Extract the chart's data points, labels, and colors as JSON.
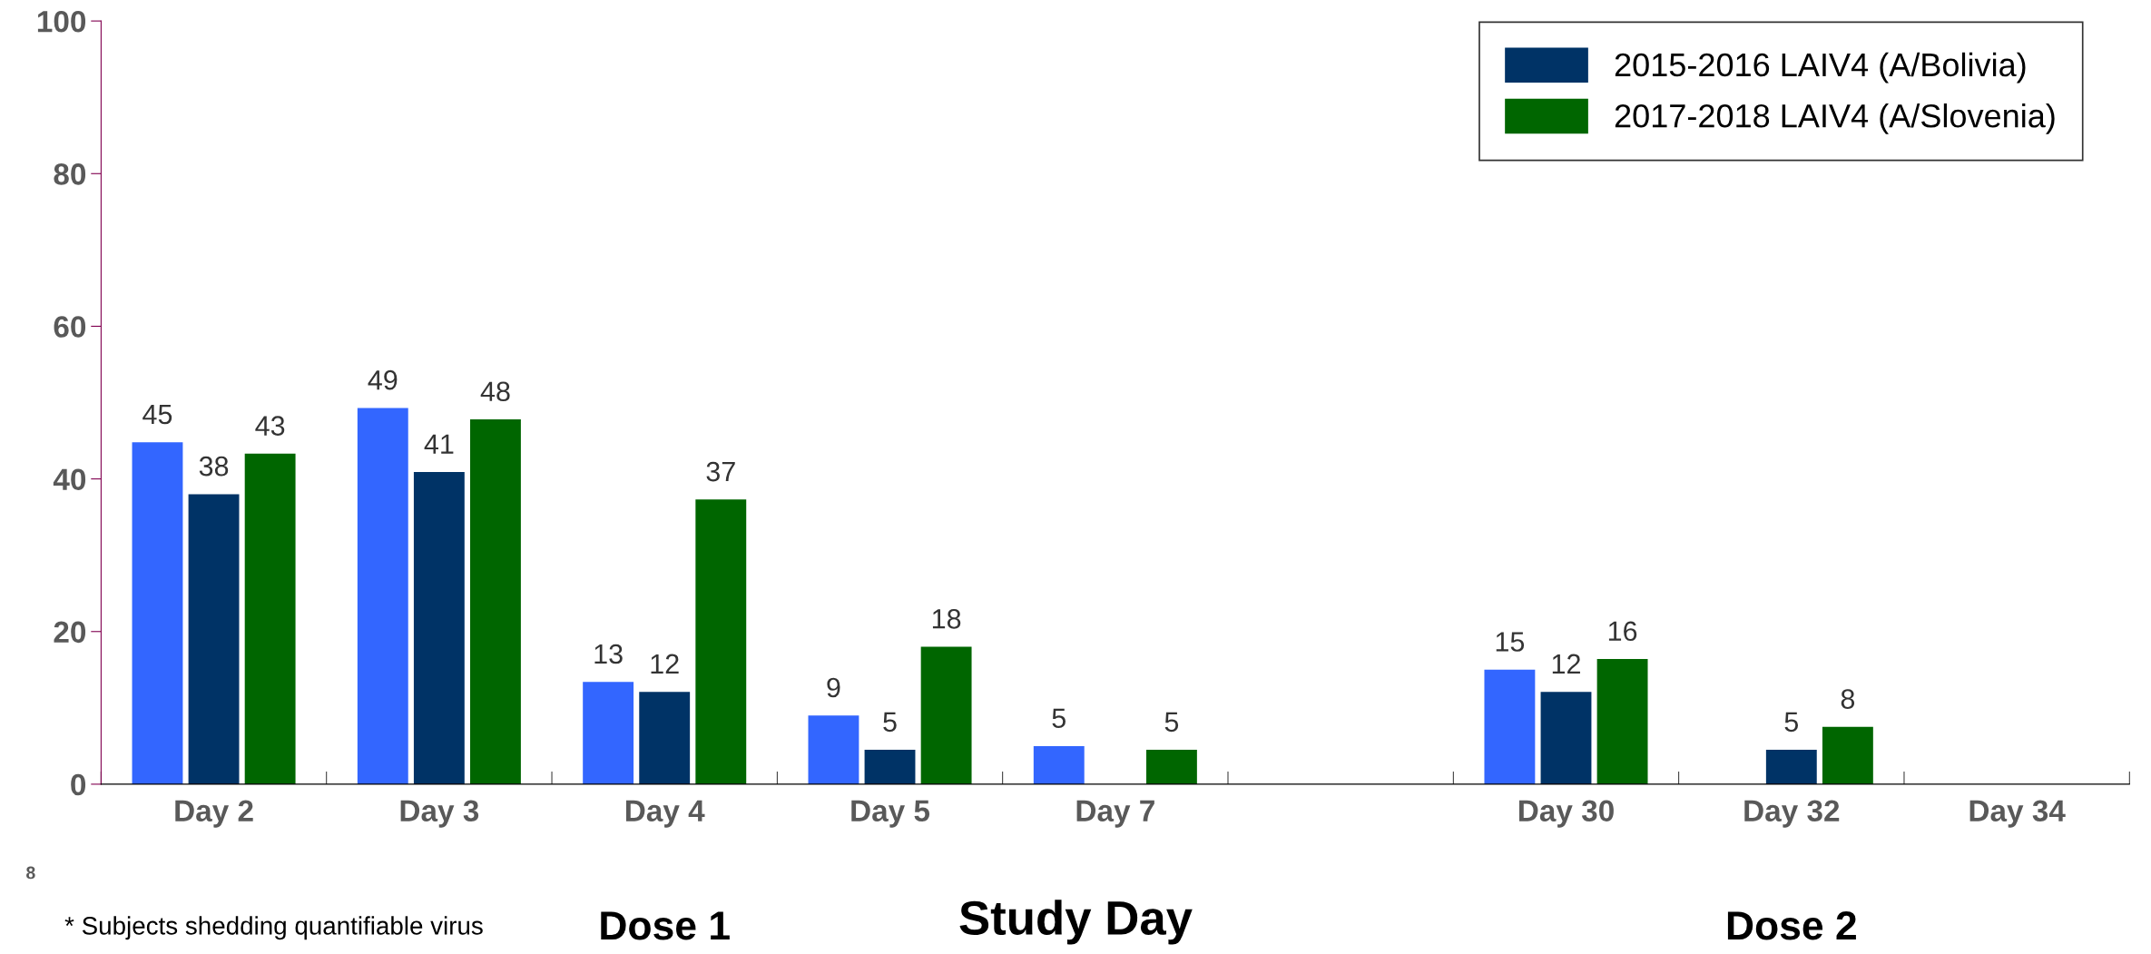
{
  "chart_data": {
    "type": "bar",
    "xlabel": "Study Day",
    "categories": [
      "Day 2",
      "Day 3",
      "Day 4",
      "Day 5",
      "Day 7",
      null,
      "Day 30",
      "Day 32",
      "Day 34"
    ],
    "series": [
      {
        "color": "#3366ff",
        "values": [
          44.8,
          49.3,
          13.4,
          9.0,
          5.0,
          null,
          15.0,
          null,
          null
        ],
        "value_labels": [
          "45",
          "49",
          "13",
          "9",
          "5",
          null,
          "15",
          null,
          null
        ]
      },
      {
        "name": "2015-2016 LAIV4 (A/Bolivia)",
        "color": "#003366",
        "values": [
          38.0,
          40.9,
          12.1,
          4.5,
          null,
          null,
          12.1,
          4.5,
          null
        ],
        "value_labels": [
          "38",
          "41",
          "12",
          "5",
          null,
          null,
          "12",
          "5",
          null
        ]
      },
      {
        "name": "2017-2018 LAIV4 (A/Slovenia)",
        "color": "#006600",
        "values": [
          43.3,
          47.8,
          37.3,
          18.0,
          4.5,
          null,
          16.4,
          7.5,
          null
        ],
        "value_labels": [
          "43",
          "48",
          "37",
          "18",
          "5",
          null,
          "16",
          "8",
          null
        ]
      }
    ],
    "ylim": [
      0,
      100
    ],
    "yticks": [
      0,
      20,
      40,
      60,
      80,
      100
    ],
    "grid": false,
    "legend": "top right",
    "annotations": [
      "Dose 1",
      "Dose 2",
      "* Subjects shedding quantifiable virus",
      "8"
    ]
  }
}
